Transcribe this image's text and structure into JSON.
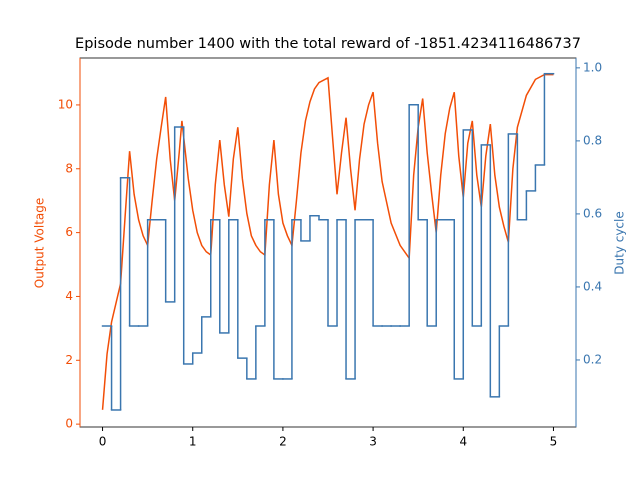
{
  "chart_data": {
    "type": "line",
    "title": "Episode number 1400 with the total reward of -1851.4234116486737",
    "y_label": "Output Voltage",
    "y2_label": "Duty cycle",
    "xlim": [
      -0.25,
      5.25
    ],
    "xticks": [
      0,
      1,
      2,
      3,
      4,
      5
    ],
    "ylim": [
      -0.09,
      11.47
    ],
    "yticks": [
      0,
      2,
      4,
      6,
      8,
      10
    ],
    "y2lim": [
      0.0164,
      1.027
    ],
    "y2ticks": [
      {
        "value": 0.2,
        "label": "0.2"
      },
      {
        "value": 0.4,
        "label": "0.4"
      },
      {
        "value": 0.6,
        "label": "0.6"
      },
      {
        "value": 0.8,
        "label": "0.8"
      },
      {
        "value": 1.0,
        "label": "1.0"
      }
    ],
    "series": [
      {
        "name": "Output Voltage",
        "color": "#f24e07",
        "drawstyle": "line",
        "x": [
          0,
          0.05,
          0.1,
          0.15,
          0.2,
          0.25,
          0.3,
          0.35,
          0.4,
          0.45,
          0.5,
          0.55,
          0.6,
          0.65,
          0.7,
          0.75,
          0.8,
          0.85,
          0.88,
          0.95,
          1.0,
          1.05,
          1.1,
          1.15,
          1.2,
          1.25,
          1.3,
          1.35,
          1.4,
          1.45,
          1.5,
          1.55,
          1.6,
          1.65,
          1.7,
          1.75,
          1.8,
          1.85,
          1.9,
          1.95,
          2.0,
          2.05,
          2.1,
          2.15,
          2.2,
          2.25,
          2.3,
          2.35,
          2.4,
          2.5,
          2.55,
          2.6,
          2.65,
          2.7,
          2.75,
          2.8,
          2.85,
          2.9,
          2.95,
          3.0,
          3.05,
          3.1,
          3.2,
          3.3,
          3.4,
          3.45,
          3.5,
          3.55,
          3.6,
          3.65,
          3.7,
          3.75,
          3.8,
          3.85,
          3.9,
          3.95,
          4.0,
          4.05,
          4.1,
          4.15,
          4.2,
          4.25,
          4.3,
          4.35,
          4.4,
          4.45,
          4.5,
          4.55,
          4.6,
          4.7,
          4.8,
          4.9,
          5.0
        ],
        "values": [
          0.45,
          2.2,
          3.2,
          3.8,
          4.4,
          6.5,
          8.55,
          7.2,
          6.4,
          5.9,
          5.6,
          7.0,
          8.3,
          9.3,
          10.25,
          8.3,
          7.0,
          8.5,
          9.5,
          7.7,
          6.7,
          6.0,
          5.6,
          5.4,
          5.3,
          7.5,
          8.9,
          7.5,
          6.5,
          8.3,
          9.3,
          7.7,
          6.6,
          5.9,
          5.6,
          5.4,
          5.3,
          7.5,
          8.9,
          7.2,
          6.3,
          5.9,
          5.6,
          7.0,
          8.5,
          9.5,
          10.1,
          10.5,
          10.7,
          10.85,
          9.0,
          7.2,
          8.5,
          9.6,
          8.0,
          6.7,
          8.3,
          9.4,
          10.0,
          10.4,
          8.8,
          7.6,
          6.3,
          5.6,
          5.2,
          7.8,
          9.3,
          10.2,
          8.5,
          7.2,
          6.0,
          7.8,
          9.1,
          9.9,
          10.4,
          8.4,
          7.1,
          8.8,
          9.5,
          7.8,
          6.8,
          8.4,
          9.4,
          7.8,
          6.8,
          6.2,
          5.7,
          8.0,
          9.3,
          10.3,
          10.8,
          10.95,
          10.95
        ]
      },
      {
        "name": "Duty cycle",
        "color": "#3a76af",
        "axis": "y2",
        "drawstyle": "steps-post",
        "x": [
          0,
          0.1,
          0.2,
          0.3,
          0.4,
          0.5,
          0.6,
          0.7,
          0.8,
          0.9,
          1.0,
          1.1,
          1.2,
          1.3,
          1.4,
          1.5,
          1.6,
          1.7,
          1.8,
          1.9,
          2.0,
          2.1,
          2.2,
          2.3,
          2.4,
          2.5,
          2.6,
          2.7,
          2.8,
          2.9,
          3.0,
          3.1,
          3.2,
          3.3,
          3.4,
          3.5,
          3.6,
          3.7,
          3.8,
          3.9,
          4.0,
          4.1,
          4.2,
          4.3,
          4.4,
          4.5,
          4.6,
          4.7,
          4.8,
          4.9,
          5.0
        ],
        "values": [
          0.293,
          0.063,
          0.699,
          0.293,
          0.293,
          0.584,
          0.584,
          0.359,
          0.838,
          0.189,
          0.219,
          0.318,
          0.584,
          0.274,
          0.584,
          0.205,
          0.148,
          0.293,
          0.584,
          0.148,
          0.148,
          0.584,
          0.526,
          0.595,
          0.584,
          0.293,
          0.584,
          0.148,
          0.584,
          0.584,
          0.293,
          0.293,
          0.293,
          0.293,
          0.899,
          0.584,
          0.293,
          0.584,
          0.584,
          0.148,
          0.83,
          0.293,
          0.789,
          0.099,
          0.293,
          0.819,
          0.584,
          0.663,
          0.734,
          0.984,
          0.984
        ]
      }
    ]
  }
}
